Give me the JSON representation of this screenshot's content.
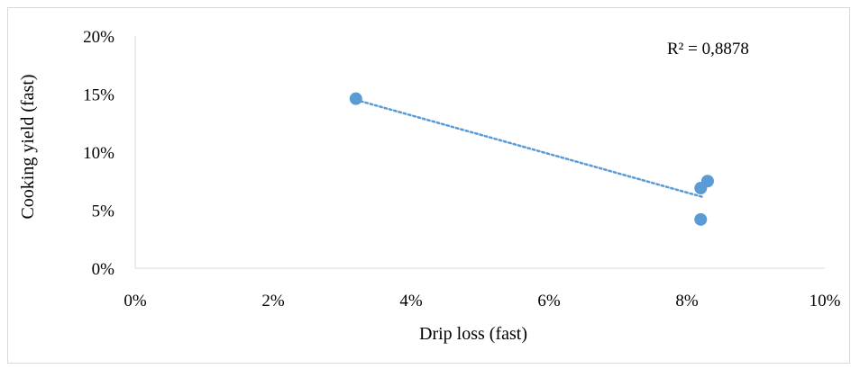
{
  "chart_data": {
    "type": "scatter",
    "title": "",
    "xlabel": "Drip loss (fast)",
    "ylabel": "Cooking yield (fast)",
    "xlim": [
      0,
      0.1
    ],
    "ylim": [
      0,
      0.2
    ],
    "x_ticks": [
      "0%",
      "2%",
      "4%",
      "6%",
      "8%",
      "10%"
    ],
    "y_ticks": [
      "0%",
      "5%",
      "10%",
      "15%",
      "20%"
    ],
    "grid": false,
    "legend": "none",
    "series": [
      {
        "points": [
          {
            "x": 0.032,
            "y": 0.146
          },
          {
            "x": 0.082,
            "y": 0.069
          },
          {
            "x": 0.083,
            "y": 0.075
          },
          {
            "x": 0.082,
            "y": 0.042
          }
        ],
        "color": "#5b9bd5"
      }
    ],
    "trendline": {
      "type": "linear",
      "from": {
        "x": 0.032,
        "y": 0.145
      },
      "to": {
        "x": 0.0825,
        "y": 0.061
      },
      "color": "#5b9bd5",
      "style": "dotted"
    },
    "annotations": [
      {
        "text": "R² = 0,8878",
        "position": "top-right"
      }
    ]
  }
}
